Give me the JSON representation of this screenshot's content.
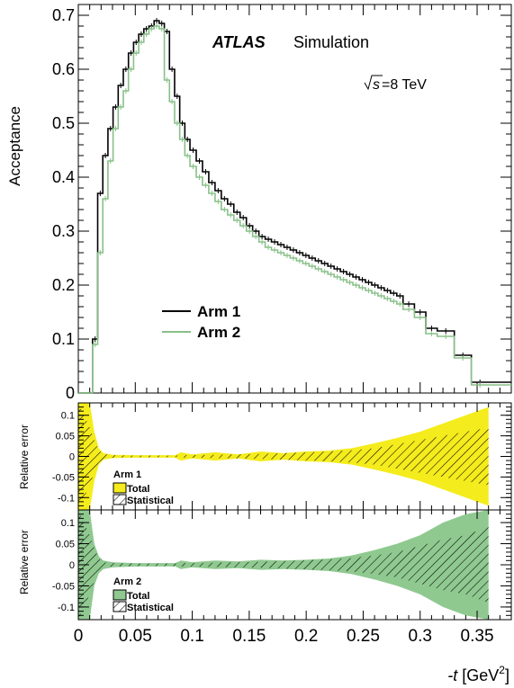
{
  "chart_data": [
    {
      "type": "line",
      "panel": "main",
      "ylabel": "Acceptance",
      "ylim": [
        0,
        0.72
      ],
      "xlim": [
        0,
        0.38
      ],
      "yticks": [
        "0",
        "0.1",
        "0.2",
        "0.3",
        "0.4",
        "0.5",
        "0.6",
        "0.7"
      ],
      "annotations": {
        "experiment": "ATLAS",
        "label": "Simulation",
        "energy_sqrt": "s",
        "energy_value": "=8 TeV"
      },
      "legend_position": "center-left",
      "bin_edges": [
        0,
        0.0125,
        0.017,
        0.0215,
        0.026,
        0.0305,
        0.035,
        0.0395,
        0.044,
        0.0485,
        0.053,
        0.0575,
        0.062,
        0.0665,
        0.071,
        0.0755,
        0.08,
        0.0845,
        0.089,
        0.0935,
        0.098,
        0.1035,
        0.109,
        0.1145,
        0.12,
        0.1255,
        0.131,
        0.1365,
        0.142,
        0.1475,
        0.153,
        0.1585,
        0.164,
        0.1695,
        0.175,
        0.1805,
        0.186,
        0.1915,
        0.197,
        0.2025,
        0.208,
        0.2135,
        0.219,
        0.2245,
        0.23,
        0.2355,
        0.241,
        0.2465,
        0.252,
        0.2575,
        0.263,
        0.2685,
        0.274,
        0.2795,
        0.285,
        0.295,
        0.305,
        0.315,
        0.33,
        0.345,
        0.36,
        0.38
      ],
      "series": [
        {
          "name": "Arm 1",
          "color": "#000000",
          "values": [
            0.0,
            0.1,
            0.37,
            0.44,
            0.49,
            0.53,
            0.57,
            0.6,
            0.63,
            0.65,
            0.665,
            0.675,
            0.68,
            0.69,
            0.685,
            0.67,
            0.6,
            0.55,
            0.5,
            0.47,
            0.45,
            0.43,
            0.41,
            0.39,
            0.375,
            0.36,
            0.35,
            0.335,
            0.325,
            0.31,
            0.3,
            0.29,
            0.285,
            0.28,
            0.275,
            0.27,
            0.265,
            0.26,
            0.255,
            0.25,
            0.245,
            0.24,
            0.235,
            0.23,
            0.225,
            0.22,
            0.215,
            0.21,
            0.205,
            0.2,
            0.195,
            0.19,
            0.185,
            0.18,
            0.165,
            0.15,
            0.12,
            0.115,
            0.07,
            0.02,
            0.02
          ]
        },
        {
          "name": "Arm 2",
          "color": "#88c088",
          "values": [
            0.0,
            0.09,
            0.26,
            0.36,
            0.43,
            0.49,
            0.53,
            0.56,
            0.6,
            0.63,
            0.65,
            0.665,
            0.675,
            0.68,
            0.675,
            0.58,
            0.54,
            0.5,
            0.47,
            0.44,
            0.42,
            0.4,
            0.385,
            0.37,
            0.355,
            0.34,
            0.33,
            0.32,
            0.31,
            0.3,
            0.29,
            0.28,
            0.27,
            0.265,
            0.26,
            0.255,
            0.25,
            0.245,
            0.24,
            0.235,
            0.23,
            0.225,
            0.22,
            0.215,
            0.21,
            0.205,
            0.2,
            0.195,
            0.19,
            0.185,
            0.18,
            0.175,
            0.17,
            0.165,
            0.155,
            0.14,
            0.11,
            0.105,
            0.065,
            0.015,
            0.015
          ]
        }
      ]
    },
    {
      "type": "area",
      "panel": "ratio-arm1",
      "ylabel": "Relative error",
      "ylim": [
        -0.13,
        0.13
      ],
      "yticks": [
        "0.1",
        "0.05",
        "0",
        "-0.05",
        "-0.1"
      ],
      "title": "Arm 1",
      "legend": [
        "Total",
        "Statistical"
      ],
      "fill_color": "#f4ec1c",
      "x": [
        0,
        0.005,
        0.01,
        0.014,
        0.018,
        0.022,
        0.03,
        0.05,
        0.07,
        0.085,
        0.09,
        0.1,
        0.12,
        0.14,
        0.16,
        0.18,
        0.2,
        0.22,
        0.24,
        0.26,
        0.28,
        0.3,
        0.32,
        0.34,
        0.36
      ],
      "total": [
        0.13,
        0.13,
        0.13,
        0.06,
        0.02,
        0.008,
        0.004,
        0.003,
        0.003,
        0.003,
        0.01,
        0.005,
        0.01,
        0.005,
        0.012,
        0.008,
        0.012,
        0.014,
        0.02,
        0.032,
        0.045,
        0.06,
        0.08,
        0.1,
        0.12
      ],
      "statistical": [
        0.13,
        0.1,
        0.07,
        0.04,
        0.015,
        0.006,
        0.003,
        0.002,
        0.002,
        0.002,
        0.003,
        0.003,
        0.004,
        0.005,
        0.006,
        0.008,
        0.01,
        0.012,
        0.015,
        0.02,
        0.03,
        0.04,
        0.05,
        0.06,
        0.07
      ]
    },
    {
      "type": "area",
      "panel": "ratio-arm2",
      "ylabel": "Relative error",
      "ylim": [
        -0.13,
        0.13
      ],
      "yticks": [
        "0.1",
        "0.05",
        "0",
        "-0.05",
        "-0.1"
      ],
      "title": "Arm 2",
      "legend": [
        "Total",
        "Statistical"
      ],
      "fill_color": "#8fc990",
      "xlabel_prefix": "-t",
      "xlabel_unit": " [GeV",
      "xlabel_exp": "2",
      "xlabel_suffix": "]",
      "xticks": [
        "0",
        "0.05",
        "0.1",
        "0.15",
        "0.2",
        "0.25",
        "0.3",
        "0.35"
      ],
      "x": [
        0,
        0.005,
        0.01,
        0.014,
        0.018,
        0.022,
        0.03,
        0.05,
        0.07,
        0.085,
        0.09,
        0.1,
        0.12,
        0.14,
        0.16,
        0.18,
        0.2,
        0.22,
        0.24,
        0.26,
        0.28,
        0.3,
        0.32,
        0.34,
        0.36
      ],
      "total": [
        0.13,
        0.13,
        0.13,
        0.05,
        0.02,
        0.01,
        0.006,
        0.004,
        0.004,
        0.004,
        0.01,
        0.006,
        0.01,
        0.008,
        0.012,
        0.01,
        0.012,
        0.015,
        0.022,
        0.035,
        0.05,
        0.07,
        0.1,
        0.12,
        0.13
      ],
      "statistical": [
        0.13,
        0.1,
        0.07,
        0.04,
        0.015,
        0.006,
        0.004,
        0.003,
        0.003,
        0.003,
        0.004,
        0.004,
        0.005,
        0.006,
        0.007,
        0.009,
        0.011,
        0.013,
        0.016,
        0.022,
        0.03,
        0.045,
        0.06,
        0.07,
        0.09
      ]
    }
  ]
}
